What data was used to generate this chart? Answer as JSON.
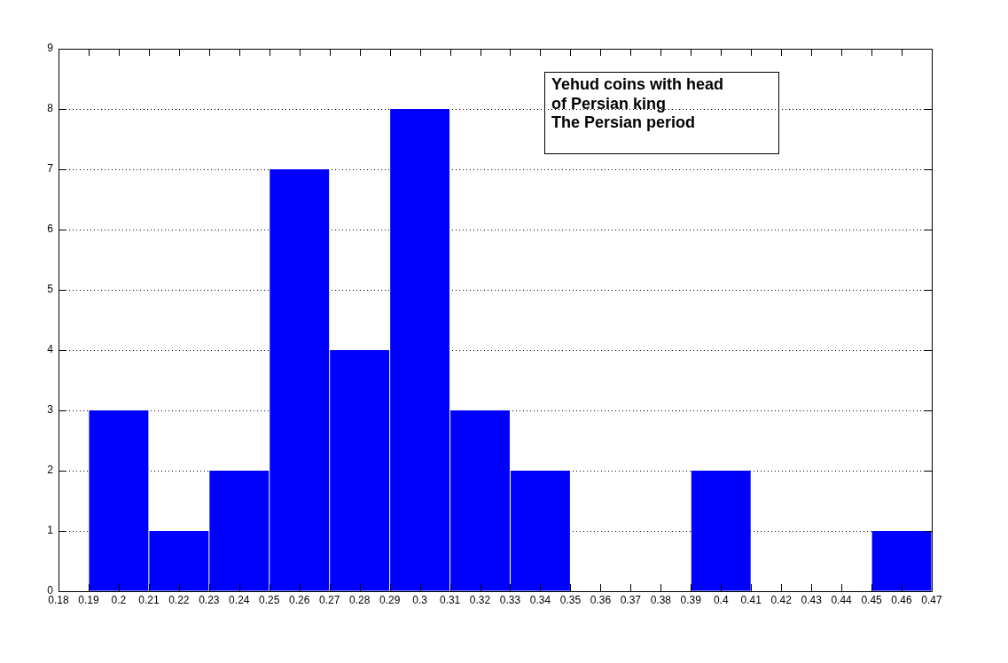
{
  "chart_data": {
    "type": "histogram",
    "bins": [
      0.19,
      0.21,
      0.23,
      0.25,
      0.27,
      0.29,
      0.31,
      0.33,
      0.35,
      0.37,
      0.39,
      0.41,
      0.43,
      0.45,
      0.47
    ],
    "values": [
      3,
      1,
      2,
      7,
      4,
      8,
      3,
      2,
      0,
      0,
      2,
      0,
      0,
      1
    ],
    "color": "#0000ff",
    "xlim": [
      0.18,
      0.47
    ],
    "xticks": [
      0.18,
      0.19,
      0.2,
      0.21,
      0.22,
      0.23,
      0.24,
      0.25,
      0.26,
      0.27,
      0.28,
      0.29,
      0.3,
      0.31,
      0.32,
      0.33,
      0.34,
      0.35,
      0.36,
      0.37,
      0.38,
      0.39,
      0.4,
      0.41,
      0.42,
      0.43,
      0.44,
      0.45,
      0.46,
      0.47
    ],
    "ylim": [
      0,
      9
    ],
    "yticks": [
      0,
      1,
      2,
      3,
      4,
      5,
      6,
      7,
      8,
      9
    ],
    "grid": "y",
    "annotations": [
      "Yehud coins with head\nof Persian king\nThe Persian period"
    ]
  }
}
